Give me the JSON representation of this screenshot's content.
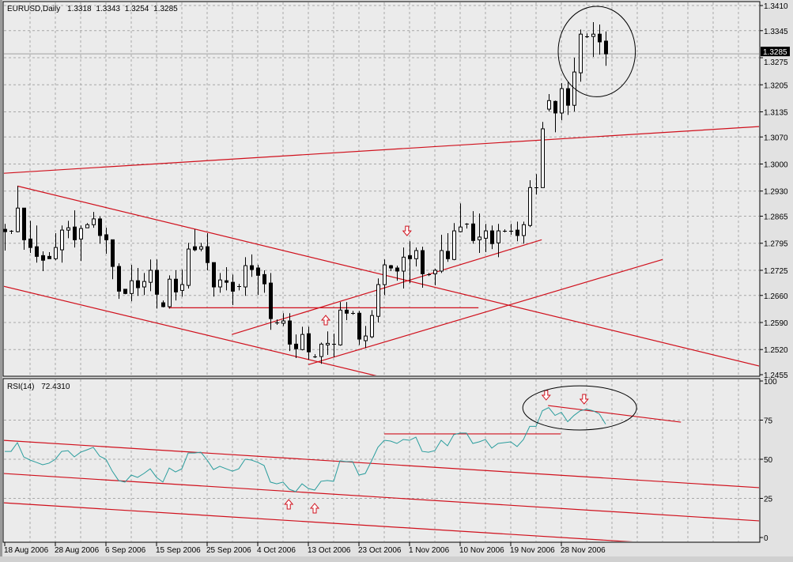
{
  "header": {
    "symbol": "EURUSD,Daily",
    "open": "1.3318",
    "high": "1.3343",
    "low": "1.3254",
    "close": "1.3285"
  },
  "rsi_header": {
    "label": "RSI(14)",
    "value": "72.4310"
  },
  "colors": {
    "background": "#ebebeb",
    "grid": "#a8a8a8",
    "bull_body": "#ffffff",
    "bear_body": "#000000",
    "trendline": "#d0101c",
    "rsi_line": "#2a9d9d",
    "annotation": "#000000"
  },
  "chart_data": [
    {
      "type": "candlestick",
      "title": "EURUSD,Daily",
      "ylim": [
        1.2455,
        1.341
      ],
      "y_ticks": [
        "1.3410",
        "1.3345",
        "1.3275",
        "1.3205",
        "1.3135",
        "1.3070",
        "1.3000",
        "1.2930",
        "1.2865",
        "1.2795",
        "1.2725",
        "1.2660",
        "1.2590",
        "1.2520",
        "1.2455"
      ],
      "x_tick_labels": [
        "18 Aug 2006",
        "28 Aug 2006",
        "6 Sep 2006",
        "15 Sep 2006",
        "25 Sep 2006",
        "4 Oct 2006",
        "13 Oct 2006",
        "23 Oct 2006",
        "1 Nov 2006",
        "10 Nov 2006",
        "19 Nov 2006",
        "28 Nov 2006"
      ],
      "x_tick_every_bars": 8,
      "grid": true,
      "current_price": "1.3285",
      "ohlc": [
        [
          1.2831,
          1.2845,
          1.2776,
          1.2825
        ],
        [
          1.2827,
          1.2829,
          1.2819,
          1.2827
        ],
        [
          1.2825,
          1.2943,
          1.2823,
          1.2886
        ],
        [
          1.2886,
          1.2886,
          1.2778,
          1.2804
        ],
        [
          1.2806,
          1.2853,
          1.277,
          1.2784
        ],
        [
          1.2786,
          1.2841,
          1.2745,
          1.2761
        ],
        [
          1.2763,
          1.2774,
          1.2723,
          1.2751
        ],
        [
          1.2761,
          1.2772,
          1.2755,
          1.2755
        ],
        [
          1.2755,
          1.2821,
          1.2751,
          1.2784
        ],
        [
          1.2778,
          1.2841,
          1.2745,
          1.2829
        ],
        [
          1.2829,
          1.2853,
          1.2808,
          1.2835
        ],
        [
          1.2837,
          1.288,
          1.2784,
          1.2804
        ],
        [
          1.2806,
          1.2841,
          1.2749,
          1.2833
        ],
        [
          1.2835,
          1.2847,
          1.2835,
          1.2843
        ],
        [
          1.2843,
          1.2876,
          1.2835,
          1.2858
        ],
        [
          1.2858,
          1.2864,
          1.2794,
          1.2815
        ],
        [
          1.2817,
          1.2835,
          1.2768,
          1.2804
        ],
        [
          1.2804,
          1.2804,
          1.2702,
          1.2735
        ],
        [
          1.2735,
          1.2743,
          1.2651,
          1.2671
        ],
        [
          1.2676,
          1.2676,
          1.2663,
          1.2665
        ],
        [
          1.2665,
          1.2739,
          1.2645,
          1.2698
        ],
        [
          1.2698,
          1.2731,
          1.2659,
          1.268
        ],
        [
          1.2682,
          1.2718,
          1.2661,
          1.2696
        ],
        [
          1.2694,
          1.2753,
          1.2671,
          1.2725
        ],
        [
          1.2725,
          1.2753,
          1.2626,
          1.2663
        ],
        [
          1.2641,
          1.2647,
          1.2629,
          1.2631
        ],
        [
          1.2631,
          1.2712,
          1.2626,
          1.2702
        ],
        [
          1.2702,
          1.2725,
          1.2647,
          1.2669
        ],
        [
          1.2673,
          1.2727,
          1.2657,
          1.2688
        ],
        [
          1.2686,
          1.2796,
          1.2678,
          1.278
        ],
        [
          1.2786,
          1.2831,
          1.2774,
          1.2778
        ],
        [
          1.278,
          1.2796,
          1.2774,
          1.2786
        ],
        [
          1.2786,
          1.2821,
          1.2725,
          1.2745
        ],
        [
          1.2745,
          1.2745,
          1.2657,
          1.2682
        ],
        [
          1.2682,
          1.2718,
          1.2667,
          1.27
        ],
        [
          1.2698,
          1.2733,
          1.2673,
          1.2694
        ],
        [
          1.2694,
          1.2714,
          1.2635,
          1.2671
        ],
        [
          1.2684,
          1.269,
          1.2673,
          1.2684
        ],
        [
          1.2682,
          1.2759,
          1.2659,
          1.2737
        ],
        [
          1.2737,
          1.2766,
          1.2708,
          1.2727
        ],
        [
          1.2731,
          1.2739,
          1.2661,
          1.2712
        ],
        [
          1.2714,
          1.2725,
          1.2667,
          1.269
        ],
        [
          1.2692,
          1.2718,
          1.2571,
          1.26
        ],
        [
          1.259,
          1.2598,
          1.2584,
          1.259
        ],
        [
          1.2588,
          1.2614,
          1.2581,
          1.2594
        ],
        [
          1.2594,
          1.2614,
          1.2516,
          1.2534
        ],
        [
          1.2534,
          1.2559,
          1.2498,
          1.2522
        ],
        [
          1.252,
          1.2579,
          1.2518,
          1.2559
        ],
        [
          1.2561,
          1.2579,
          1.2494,
          1.2514
        ],
        [
          1.2502,
          1.2508,
          1.2498,
          1.2502
        ],
        [
          1.2502,
          1.2538,
          1.2483,
          1.2534
        ],
        [
          1.2532,
          1.2567,
          1.2506,
          1.2536
        ],
        [
          1.2536,
          1.2561,
          1.25,
          1.2534
        ],
        [
          1.2532,
          1.2643,
          1.253,
          1.2622
        ],
        [
          1.2622,
          1.2643,
          1.2596,
          1.2614
        ],
        [
          1.2614,
          1.262,
          1.261,
          1.2614
        ],
        [
          1.2614,
          1.262,
          1.2532,
          1.2547
        ],
        [
          1.2543,
          1.2581,
          1.2524,
          1.2555
        ],
        [
          1.2553,
          1.2622,
          1.2549,
          1.2608
        ],
        [
          1.2606,
          1.2704,
          1.259,
          1.2688
        ],
        [
          1.2688,
          1.2753,
          1.2661,
          1.2739
        ],
        [
          1.2737,
          1.2739,
          1.2723,
          1.2731
        ],
        [
          1.2731,
          1.2737,
          1.2698,
          1.2723
        ],
        [
          1.2723,
          1.2784,
          1.2678,
          1.2759
        ],
        [
          1.2763,
          1.28,
          1.2692,
          1.2755
        ],
        [
          1.2755,
          1.2784,
          1.2735,
          1.2776
        ],
        [
          1.2776,
          1.2786,
          1.268,
          1.2716
        ],
        [
          1.2714,
          1.2718,
          1.271,
          1.2714
        ],
        [
          1.2716,
          1.2729,
          1.2686,
          1.2725
        ],
        [
          1.2723,
          1.2817,
          1.2718,
          1.2776
        ],
        [
          1.2774,
          1.2821,
          1.2747,
          1.2755
        ],
        [
          1.2753,
          1.2847,
          1.2751,
          1.2827
        ],
        [
          1.2825,
          1.2898,
          1.2823,
          1.2837
        ],
        [
          1.2845,
          1.2847,
          1.2833,
          1.2845
        ],
        [
          1.2845,
          1.2878,
          1.2794,
          1.2802
        ],
        [
          1.2804,
          1.2872,
          1.277,
          1.2811
        ],
        [
          1.2808,
          1.2845,
          1.2772,
          1.2827
        ],
        [
          1.2827,
          1.2841,
          1.278,
          1.2794
        ],
        [
          1.2796,
          1.2845,
          1.2759,
          1.2827
        ],
        [
          1.2827,
          1.2831,
          1.2823,
          1.2827
        ],
        [
          1.2827,
          1.2845,
          1.2817,
          1.2827
        ],
        [
          1.2829,
          1.2851,
          1.28,
          1.2815
        ],
        [
          1.2815,
          1.2851,
          1.2794,
          1.2843
        ],
        [
          1.2841,
          1.2958,
          1.2837,
          1.2939
        ],
        [
          1.2939,
          1.2974,
          1.2921,
          1.2939
        ],
        [
          1.2939,
          1.3109,
          1.2939,
          1.3091
        ],
        [
          1.3142,
          1.3181,
          1.3136,
          1.3164
        ],
        [
          1.3162,
          1.3164,
          1.3082,
          1.3132
        ],
        [
          1.3132,
          1.3209,
          1.3113,
          1.3195
        ],
        [
          1.3195,
          1.3213,
          1.3127,
          1.3152
        ],
        [
          1.3152,
          1.3275,
          1.3136,
          1.3238
        ],
        [
          1.3236,
          1.3348,
          1.3213,
          1.3336
        ],
        [
          1.333,
          1.3338,
          1.3326,
          1.333
        ],
        [
          1.333,
          1.3367,
          1.3277,
          1.3336
        ],
        [
          1.3336,
          1.3361,
          1.3283,
          1.3316
        ],
        [
          1.3318,
          1.3343,
          1.3254,
          1.3285
        ]
      ],
      "trendlines": [
        {
          "from": [
            -0.25,
            1.2976
          ],
          "to": [
            119.4,
            1.3097
          ]
        },
        {
          "from": [
            2,
            1.2943
          ],
          "to": [
            119.4,
            1.2477
          ]
        },
        {
          "from": [
            -0.25,
            1.2684
          ],
          "to": [
            59,
            1.2451
          ]
        },
        {
          "from": [
            25.9,
            1.2628
          ],
          "to": [
            74.9,
            1.2628
          ]
        },
        {
          "from": [
            35.9,
            1.2559
          ],
          "to": [
            84.9,
            1.2804
          ]
        },
        {
          "from": [
            48,
            1.2481
          ],
          "to": [
            104,
            1.2753
          ]
        }
      ],
      "arrows": [
        {
          "direction": "down",
          "at": [
            63.6,
            1.2827
          ]
        },
        {
          "direction": "up",
          "at": [
            50.75,
            1.2596
          ]
        }
      ],
      "ellipse": {
        "center": [
          93.6,
          1.3291
        ],
        "half_width_bars": 6.1,
        "half_height_price": 0.0117
      }
    },
    {
      "type": "line",
      "title": "RSI(14)",
      "ylim": [
        0,
        100
      ],
      "y_ticks": [
        "100",
        "75",
        "50",
        "25",
        "0"
      ],
      "grid": true,
      "values": [
        55,
        55,
        60.6,
        51.5,
        49.5,
        48,
        46.5,
        47.5,
        50,
        55,
        55.5,
        51.5,
        54.5,
        56,
        57.6,
        52,
        50,
        42.4,
        36.4,
        35.4,
        39.9,
        38.4,
        40.9,
        43.9,
        38.4,
        35.4,
        44.4,
        41.9,
        43.9,
        54,
        54,
        54.5,
        49.5,
        43.4,
        45.5,
        43.9,
        42.4,
        43.9,
        50,
        49.5,
        48,
        46,
        35.4,
        34.3,
        35.4,
        30.8,
        29.3,
        34.3,
        31.3,
        30.3,
        35.9,
        36.4,
        35.9,
        49,
        48.5,
        48.5,
        39.9,
        40.9,
        49,
        57.6,
        62.1,
        61.6,
        60.1,
        62.6,
        62.1,
        64.1,
        55,
        54.5,
        55.5,
        62.1,
        58.6,
        65.7,
        66.7,
        66.7,
        60.1,
        61.1,
        62.6,
        57.1,
        60.1,
        60.6,
        61.1,
        58.1,
        62.6,
        71,
        71,
        81,
        83,
        78,
        80,
        74,
        78,
        81,
        82,
        81,
        79,
        72.431
      ],
      "trendlines": [
        {
          "from": [
            -0.25,
            62.1
          ],
          "to": [
            119.4,
            31.8
          ]
        },
        {
          "from": [
            -0.25,
            40.9
          ],
          "to": [
            119.4,
            10.6
          ]
        },
        {
          "from": [
            -0.25,
            22.2
          ],
          "to": [
            100,
            -3.0
          ]
        },
        {
          "from": [
            60,
            66.2
          ],
          "to": [
            87.9,
            66.2
          ]
        },
        {
          "from": [
            85.9,
            84.3
          ],
          "to": [
            106.9,
            73.7
          ]
        }
      ],
      "arrows": [
        {
          "direction": "down",
          "at": [
            85.6,
            90.9
          ]
        },
        {
          "direction": "down",
          "at": [
            91.6,
            88.4
          ]
        },
        {
          "direction": "up",
          "at": [
            44.9,
            21.2
          ]
        },
        {
          "direction": "up",
          "at": [
            49,
            18.7
          ]
        }
      ],
      "ellipse": {
        "center": [
          90.9,
          82.8
        ],
        "half_width_bars": 9,
        "half_height_value": 14.1
      }
    }
  ]
}
